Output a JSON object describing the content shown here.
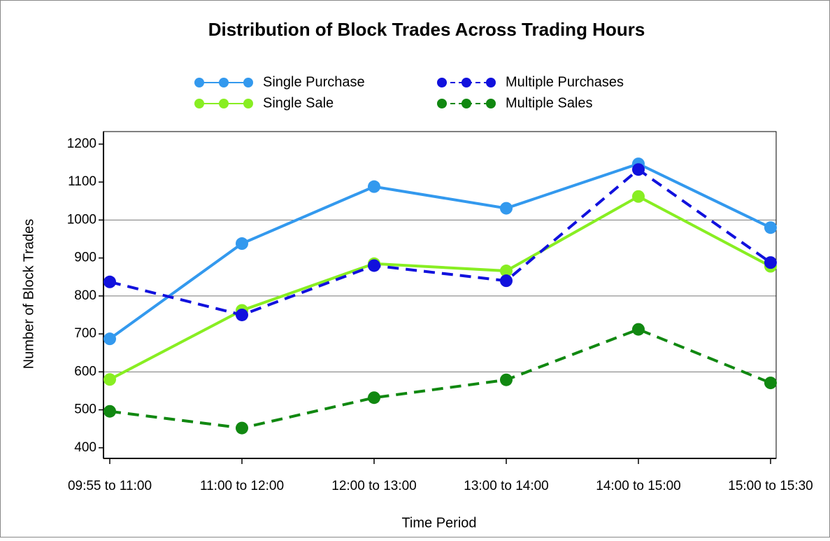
{
  "chart_data": {
    "type": "line",
    "title": "Distribution of Block Trades Across Trading Hours",
    "x_label": "Time Period",
    "y_label": "Number of Block Trades",
    "categories": [
      "09:55 to 11:00",
      "11:00 to 12:00",
      "12:00 to 13:00",
      "13:00 to 14:00",
      "14:00 to 15:00",
      "15:00 to 15:30"
    ],
    "series": [
      {
        "name": "Single Purchase",
        "color": "#3399ee",
        "dashed": false,
        "values": [
          687,
          938,
          1088,
          1031,
          1148,
          980
        ]
      },
      {
        "name": "Single Sale",
        "color": "#88ee22",
        "dashed": false,
        "values": [
          580,
          762,
          885,
          866,
          1062,
          878
        ]
      },
      {
        "name": "Multiple Purchases",
        "color": "#1111dd",
        "dashed": true,
        "values": [
          837,
          750,
          880,
          840,
          1133,
          888
        ]
      },
      {
        "name": "Multiple Sales",
        "color": "#118811",
        "dashed": true,
        "values": [
          496,
          452,
          532,
          579,
          712,
          571
        ]
      }
    ],
    "ylim": [
      372,
      1233
    ],
    "yticks": [
      400,
      500,
      600,
      700,
      800,
      900,
      1000,
      1100,
      1200
    ],
    "grid_lines": [
      600,
      800,
      1000
    ]
  }
}
